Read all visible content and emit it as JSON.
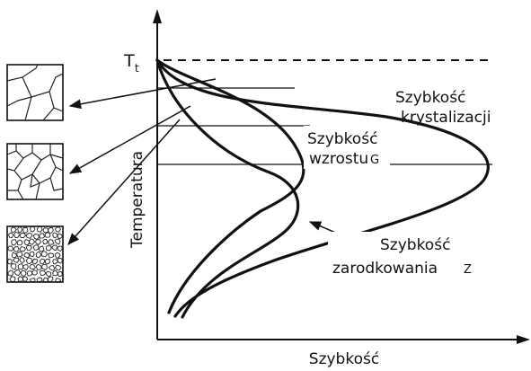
{
  "axes": {
    "y_label": "Temperatura",
    "x_label": "Szybkość",
    "top_label_main": "T",
    "top_label_sub": "t"
  },
  "curves": {
    "crystallization": {
      "line1": "Szybkość",
      "line2": "krystalizacji"
    },
    "growth": {
      "line1": "Szybkość",
      "line2": "wzrostu",
      "symbol": "G"
    },
    "nucleation": {
      "line1": "Szybkość",
      "line2": "zarodkowania",
      "symbol": "Z"
    }
  },
  "grain_samples": [
    {
      "size": "coarse"
    },
    {
      "size": "medium"
    },
    {
      "size": "fine"
    }
  ]
}
